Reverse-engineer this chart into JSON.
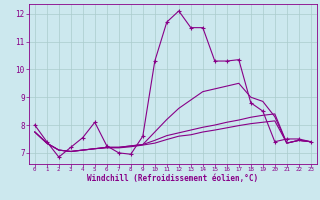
{
  "xlabel": "Windchill (Refroidissement éolien,°C)",
  "background_color": "#cce8ee",
  "line_color": "#880088",
  "grid_color": "#aacccc",
  "xlim": [
    -0.5,
    23.5
  ],
  "ylim": [
    6.6,
    12.35
  ],
  "xticks": [
    0,
    1,
    2,
    3,
    4,
    5,
    6,
    7,
    8,
    9,
    10,
    11,
    12,
    13,
    14,
    15,
    16,
    17,
    18,
    19,
    20,
    21,
    22,
    23
  ],
  "yticks": [
    7,
    8,
    9,
    10,
    11,
    12
  ],
  "series": [
    {
      "x": [
        0,
        1,
        2,
        3,
        4,
        5,
        6,
        7,
        8,
        9,
        10,
        11,
        12,
        13,
        14,
        15,
        16,
        17,
        18,
        19,
        20,
        21,
        22,
        23
      ],
      "y": [
        8.0,
        7.4,
        6.85,
        7.2,
        7.55,
        8.1,
        7.25,
        7.0,
        6.95,
        7.6,
        10.3,
        11.7,
        12.1,
        11.5,
        11.5,
        10.3,
        10.3,
        10.35,
        8.8,
        8.5,
        7.4,
        7.5,
        7.5,
        7.4
      ],
      "marker": true
    },
    {
      "x": [
        0,
        1,
        2,
        3,
        4,
        5,
        6,
        7,
        8,
        9,
        10,
        11,
        12,
        13,
        14,
        15,
        16,
        17,
        18,
        19,
        20,
        21,
        22,
        23
      ],
      "y": [
        7.75,
        7.35,
        7.1,
        7.05,
        7.1,
        7.15,
        7.2,
        7.2,
        7.25,
        7.3,
        7.75,
        8.2,
        8.6,
        8.9,
        9.2,
        9.3,
        9.4,
        9.5,
        9.0,
        8.85,
        8.3,
        7.35,
        7.45,
        7.4
      ],
      "marker": false
    },
    {
      "x": [
        0,
        1,
        2,
        3,
        4,
        5,
        6,
        7,
        8,
        9,
        10,
        11,
        12,
        13,
        14,
        15,
        16,
        17,
        18,
        19,
        20,
        21,
        22,
        23
      ],
      "y": [
        7.75,
        7.35,
        7.1,
        7.05,
        7.1,
        7.15,
        7.2,
        7.2,
        7.25,
        7.3,
        7.45,
        7.62,
        7.72,
        7.82,
        7.92,
        8.0,
        8.1,
        8.18,
        8.28,
        8.35,
        8.4,
        7.35,
        7.45,
        7.4
      ],
      "marker": false
    },
    {
      "x": [
        0,
        1,
        2,
        3,
        4,
        5,
        6,
        7,
        8,
        9,
        10,
        11,
        12,
        13,
        14,
        15,
        16,
        17,
        18,
        19,
        20,
        21,
        22,
        23
      ],
      "y": [
        7.75,
        7.35,
        7.1,
        7.05,
        7.1,
        7.15,
        7.18,
        7.18,
        7.22,
        7.28,
        7.35,
        7.48,
        7.6,
        7.65,
        7.75,
        7.82,
        7.9,
        7.98,
        8.05,
        8.1,
        8.15,
        7.35,
        7.45,
        7.4
      ],
      "marker": false
    }
  ]
}
